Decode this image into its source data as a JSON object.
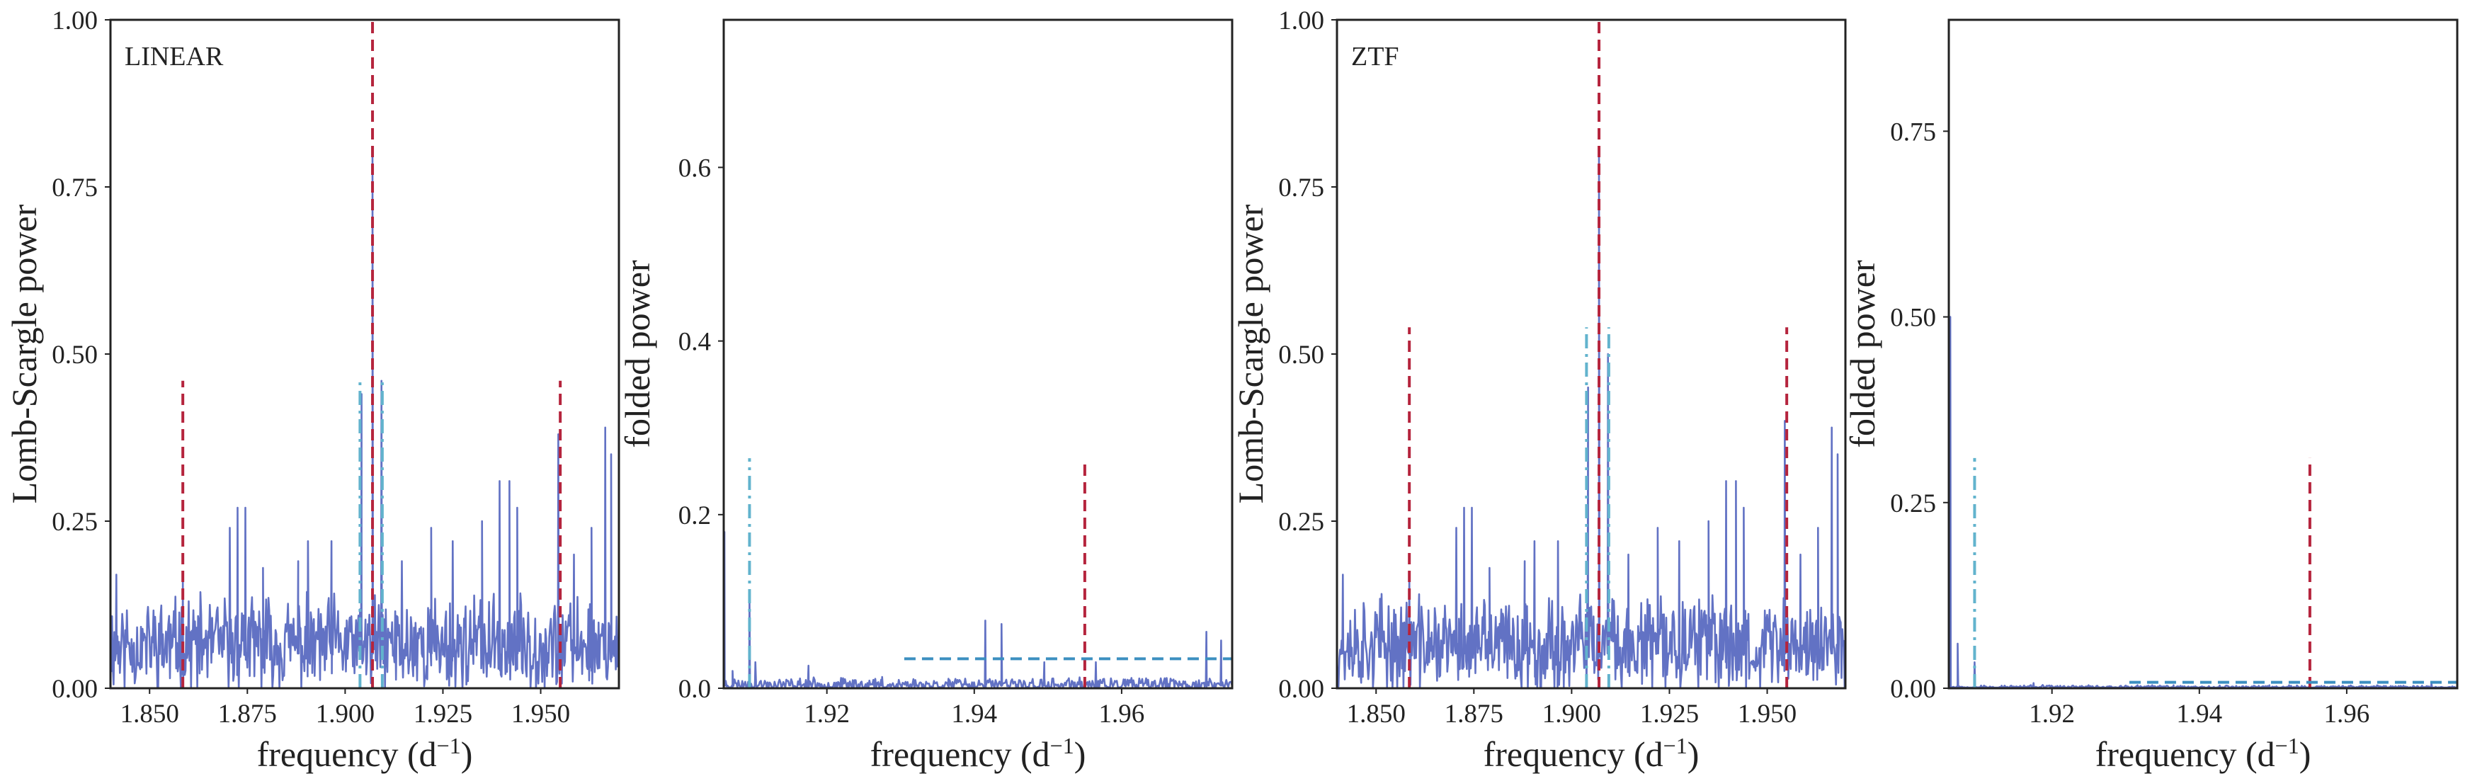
{
  "colors": {
    "series": "#6272c4",
    "peak": "#b5243d",
    "alias": "#62b3cd",
    "threshold": "#3c8fc0"
  },
  "chart_data": [
    {
      "id": "linear-periodogram",
      "type": "line",
      "panel_label": "LINEAR",
      "xlabel": "frequency (d",
      "xlabel_sup": "−1",
      "xlabel_end": ")",
      "ylabel": "Lomb-Scargle power",
      "xlim": [
        1.84,
        1.97
      ],
      "ylim": [
        0.0,
        1.0
      ],
      "xticks": [
        1.85,
        1.875,
        1.9,
        1.925,
        1.95
      ],
      "xtick_labels": [
        "1.850",
        "1.875",
        "1.900",
        "1.925",
        "1.950"
      ],
      "yticks": [
        0.0,
        0.25,
        0.5,
        0.75,
        1.0
      ],
      "ytick_labels": [
        "0.00",
        "0.25",
        "0.50",
        "0.75",
        "1.00"
      ],
      "noise": {
        "x_start": 1.84,
        "x_end": 1.97,
        "n": 650,
        "base": 0.065,
        "amp": 0.055,
        "seed": 11
      },
      "peaks": [
        [
          1.8415,
          0.17
        ],
        [
          1.8585,
          0.17
        ],
        [
          1.8705,
          0.24
        ],
        [
          1.8725,
          0.27
        ],
        [
          1.8745,
          0.27
        ],
        [
          1.879,
          0.18
        ],
        [
          1.888,
          0.19
        ],
        [
          1.8905,
          0.22
        ],
        [
          1.8965,
          0.22
        ],
        [
          1.9042,
          0.44
        ],
        [
          1.907,
          0.8
        ],
        [
          1.9093,
          0.46
        ],
        [
          1.9145,
          0.19
        ],
        [
          1.922,
          0.24
        ],
        [
          1.9275,
          0.22
        ],
        [
          1.935,
          0.25
        ],
        [
          1.9395,
          0.31
        ],
        [
          1.942,
          0.31
        ],
        [
          1.944,
          0.27
        ],
        [
          1.9545,
          0.38
        ],
        [
          1.9585,
          0.2
        ],
        [
          1.963,
          0.24
        ],
        [
          1.9665,
          0.39
        ],
        [
          1.968,
          0.35
        ]
      ],
      "vlines_peak": [
        {
          "x": 1.8585,
          "y0": 0,
          "y1": 0.46
        },
        {
          "x": 1.907,
          "y0": 0,
          "y1": 1.0
        },
        {
          "x": 1.955,
          "y0": 0,
          "y1": 0.46
        }
      ],
      "vlines_alias": [
        {
          "x": 1.9038,
          "y0": 0,
          "y1": 0.46
        },
        {
          "x": 1.9095,
          "y0": 0,
          "y1": 0.46
        }
      ],
      "hlines": []
    },
    {
      "id": "linear-folded",
      "type": "line",
      "panel_label": "",
      "xlabel": "frequency (d",
      "xlabel_sup": "−1",
      "xlabel_end": ")",
      "ylabel": "folded power",
      "xlim": [
        1.906,
        1.975
      ],
      "ylim": [
        0.0,
        0.77
      ],
      "xticks": [
        1.92,
        1.94,
        1.96
      ],
      "xtick_labels": [
        "1.92",
        "1.94",
        "1.96"
      ],
      "yticks": [
        0.0,
        0.2,
        0.4,
        0.6
      ],
      "ytick_labels": [
        "0.0",
        "0.2",
        "0.4",
        "0.6"
      ],
      "noise": {
        "x_start": 1.906,
        "x_end": 1.975,
        "n": 520,
        "base": 0.004,
        "amp": 0.006,
        "seed": 23
      },
      "peaks": [
        [
          1.9061,
          0.18
        ],
        [
          1.9072,
          0.02
        ],
        [
          1.9095,
          0.1
        ],
        [
          1.9103,
          0.03
        ],
        [
          1.9175,
          0.026
        ],
        [
          1.9275,
          0.013
        ],
        [
          1.9365,
          0.011
        ],
        [
          1.9415,
          0.078
        ],
        [
          1.9437,
          0.074
        ],
        [
          1.9495,
          0.03
        ],
        [
          1.9565,
          0.03
        ],
        [
          1.9605,
          0.01
        ],
        [
          1.9715,
          0.065
        ],
        [
          1.9735,
          0.055
        ]
      ],
      "vlines_peak": [
        {
          "x": 1.955,
          "y0": 0,
          "y1": 0.265
        }
      ],
      "vlines_alias": [
        {
          "x": 1.9095,
          "y0": 0,
          "y1": 0.265
        }
      ],
      "hlines": [
        {
          "y": 0.034,
          "x0": 1.9305,
          "x1": 1.975
        }
      ]
    },
    {
      "id": "ztf-periodogram",
      "type": "line",
      "panel_label": "ZTF",
      "xlabel": "frequency (d",
      "xlabel_sup": "−1",
      "xlabel_end": ")",
      "ylabel": "Lomb-Scargle power",
      "xlim": [
        1.84,
        1.97
      ],
      "ylim": [
        0.0,
        1.0
      ],
      "xticks": [
        1.85,
        1.875,
        1.9,
        1.925,
        1.95
      ],
      "xtick_labels": [
        "1.850",
        "1.875",
        "1.900",
        "1.925",
        "1.950"
      ],
      "yticks": [
        0.0,
        0.25,
        0.5,
        0.75,
        1.0
      ],
      "ytick_labels": [
        "0.00",
        "0.25",
        "0.50",
        "0.75",
        "1.00"
      ],
      "noise": {
        "x_start": 1.84,
        "x_end": 1.97,
        "n": 650,
        "base": 0.065,
        "amp": 0.055,
        "seed": 37
      },
      "peaks": [
        [
          1.8415,
          0.17
        ],
        [
          1.8585,
          0.17
        ],
        [
          1.8705,
          0.24
        ],
        [
          1.8725,
          0.27
        ],
        [
          1.8745,
          0.27
        ],
        [
          1.879,
          0.18
        ],
        [
          1.888,
          0.19
        ],
        [
          1.8905,
          0.22
        ],
        [
          1.8965,
          0.22
        ],
        [
          1.9042,
          0.45
        ],
        [
          1.907,
          0.8
        ],
        [
          1.9093,
          0.5
        ],
        [
          1.9145,
          0.2
        ],
        [
          1.922,
          0.24
        ],
        [
          1.9275,
          0.22
        ],
        [
          1.935,
          0.25
        ],
        [
          1.9395,
          0.31
        ],
        [
          1.942,
          0.31
        ],
        [
          1.944,
          0.27
        ],
        [
          1.9545,
          0.4
        ],
        [
          1.9585,
          0.2
        ],
        [
          1.963,
          0.24
        ],
        [
          1.9665,
          0.39
        ],
        [
          1.968,
          0.35
        ]
      ],
      "vlines_peak": [
        {
          "x": 1.8585,
          "y0": 0,
          "y1": 0.54
        },
        {
          "x": 1.907,
          "y0": 0,
          "y1": 1.0
        },
        {
          "x": 1.955,
          "y0": 0,
          "y1": 0.54
        }
      ],
      "vlines_alias": [
        {
          "x": 1.9038,
          "y0": 0,
          "y1": 0.54
        },
        {
          "x": 1.9095,
          "y0": 0,
          "y1": 0.54
        }
      ],
      "hlines": []
    },
    {
      "id": "ztf-folded",
      "type": "line",
      "panel_label": "",
      "xlabel": "frequency (d",
      "xlabel_sup": "−1",
      "xlabel_end": ")",
      "ylabel": "folded power",
      "xlim": [
        1.906,
        1.975
      ],
      "ylim": [
        0.0,
        0.9
      ],
      "xticks": [
        1.92,
        1.94,
        1.96
      ],
      "xtick_labels": [
        "1.92",
        "1.94",
        "1.96"
      ],
      "yticks": [
        0.0,
        0.25,
        0.5,
        0.75
      ],
      "ytick_labels": [
        "0.00",
        "0.25",
        "0.50",
        "0.75"
      ],
      "noise": {
        "x_start": 1.906,
        "x_end": 1.975,
        "n": 520,
        "base": 0.0015,
        "amp": 0.002,
        "seed": 53
      },
      "peaks": [
        [
          1.9062,
          0.5
        ],
        [
          1.9072,
          0.06
        ],
        [
          1.9095,
          0.035
        ],
        [
          1.9175,
          0.007
        ],
        [
          1.9365,
          0.004
        ],
        [
          1.9495,
          0.004
        ],
        [
          1.9715,
          0.006
        ]
      ],
      "vlines_peak": [
        {
          "x": 1.955,
          "y0": 0,
          "y1": 0.31
        }
      ],
      "vlines_alias": [
        {
          "x": 1.9095,
          "y0": 0,
          "y1": 0.31
        }
      ],
      "hlines": [
        {
          "y": 0.008,
          "x0": 1.9305,
          "x1": 1.975
        }
      ]
    }
  ]
}
